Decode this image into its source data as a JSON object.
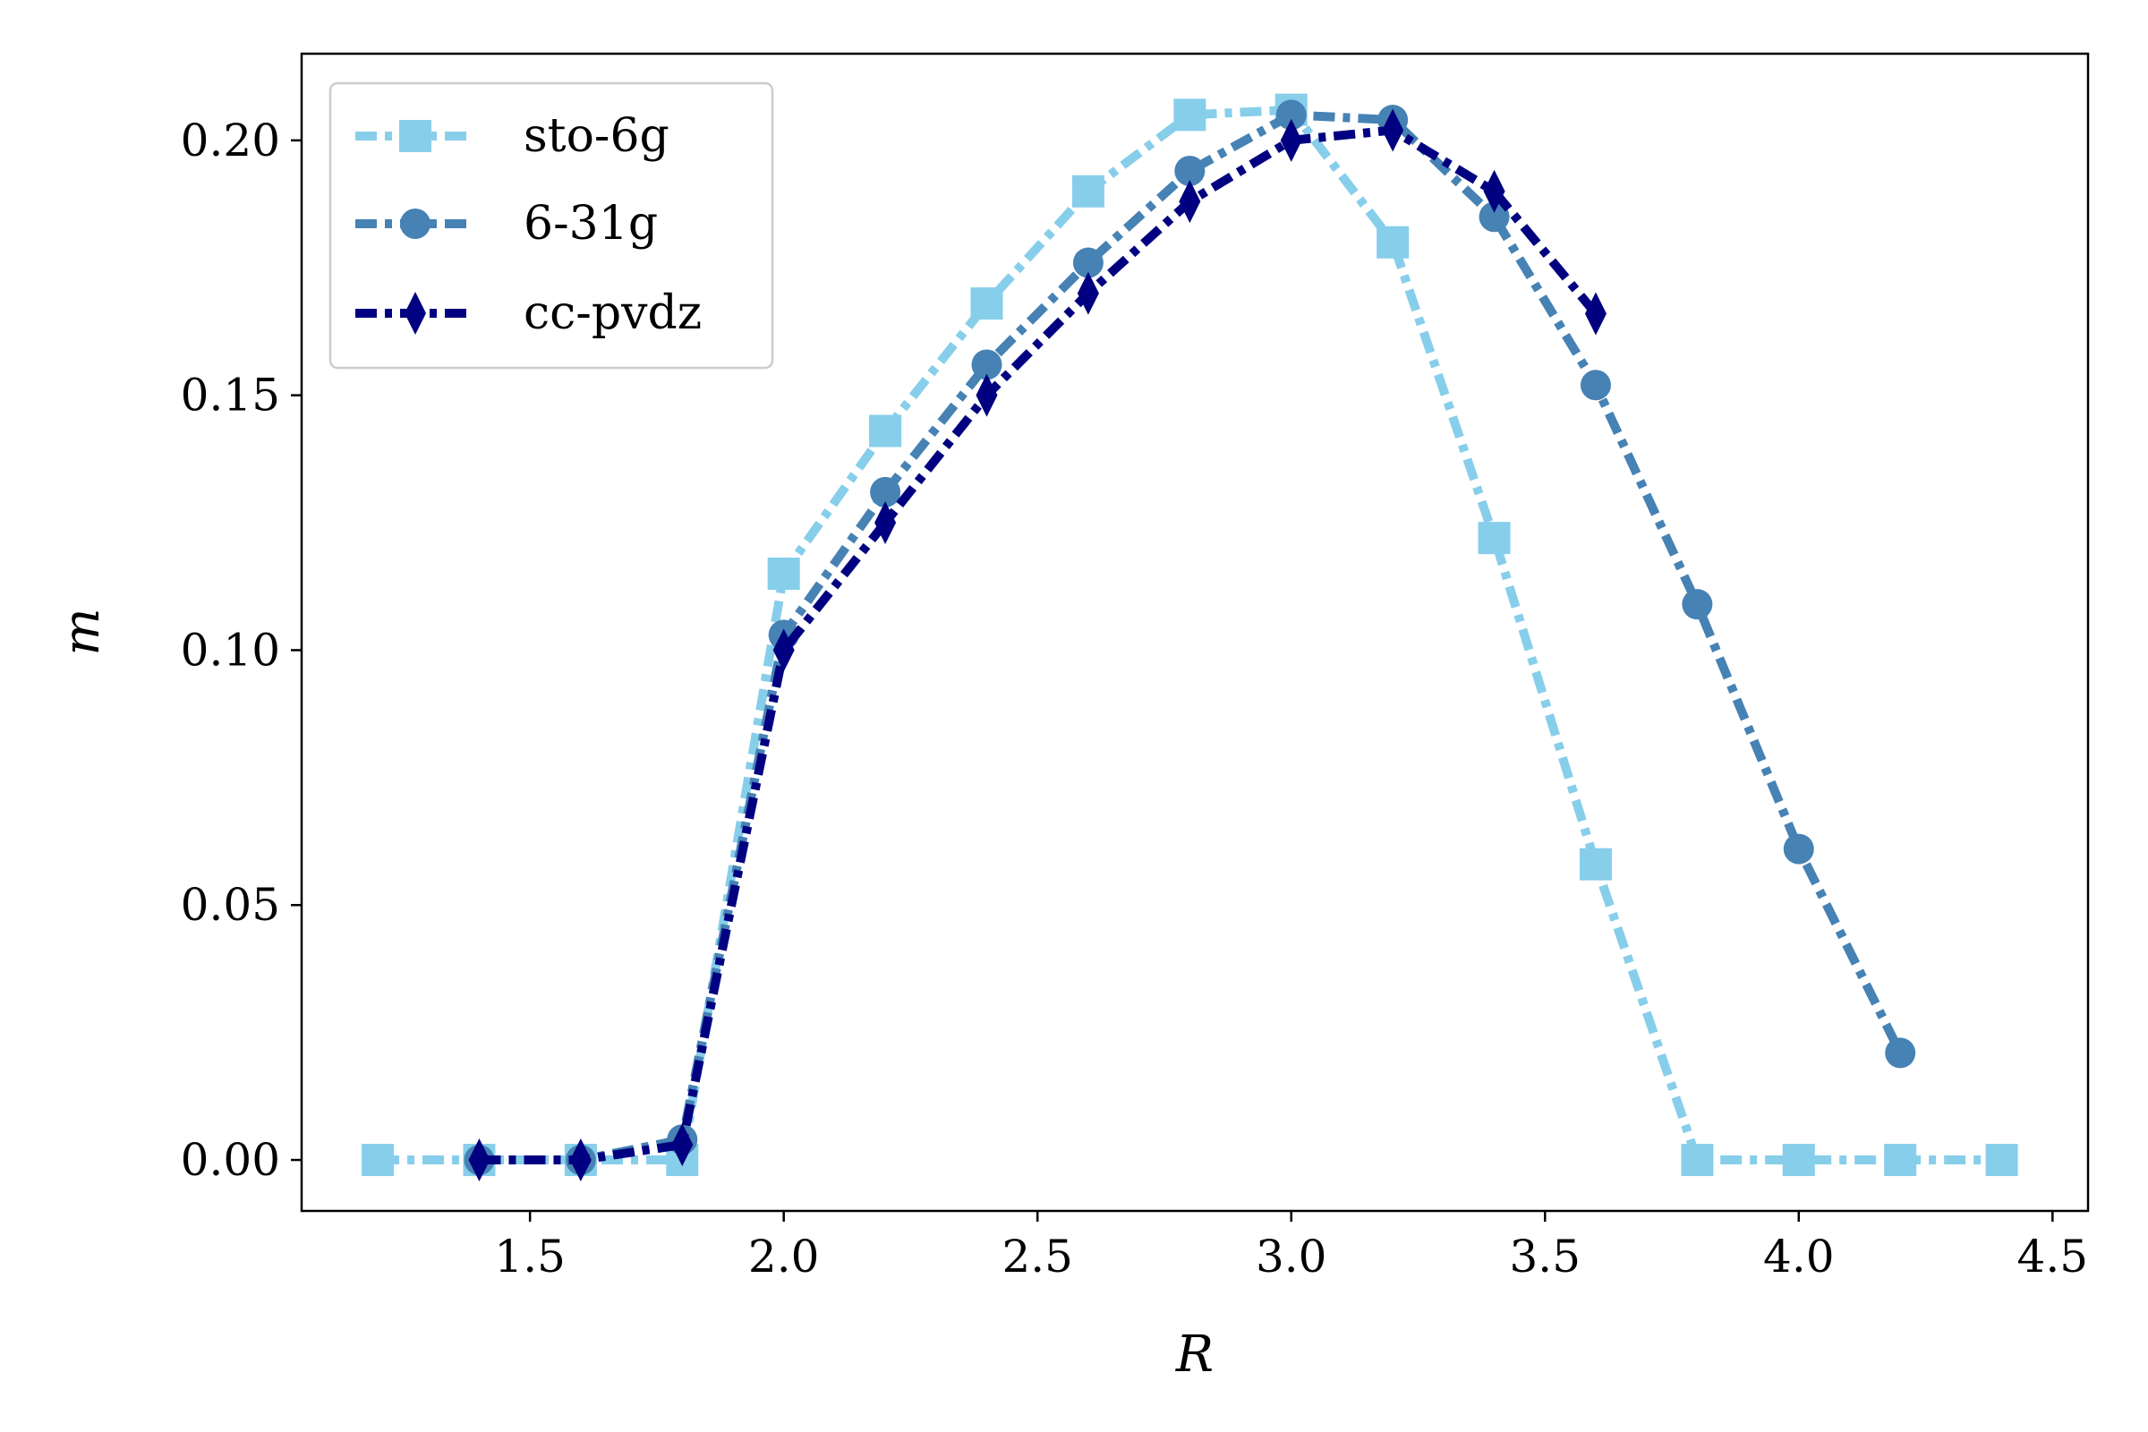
{
  "chart_data": {
    "type": "line",
    "title": "",
    "xlabel": "R",
    "ylabel": "m",
    "xlim": [
      1.05,
      4.57
    ],
    "ylim": [
      -0.01,
      0.217
    ],
    "xticks": [
      "1.5",
      "2.0",
      "2.5",
      "3.0",
      "3.5",
      "4.0",
      "4.5"
    ],
    "yticks": [
      "0.00",
      "0.05",
      "0.10",
      "0.15",
      "0.20"
    ],
    "grid": false,
    "legend_position": "top-left",
    "series": [
      {
        "name": "sto-6g",
        "marker": "square",
        "color": "#87CEEB",
        "x": [
          1.2,
          1.4,
          1.6,
          1.8,
          2.0,
          2.2,
          2.4,
          2.6,
          2.8,
          3.0,
          3.2,
          3.4,
          3.6,
          3.8,
          4.0,
          4.2,
          4.4
        ],
        "y": [
          0.0,
          0.0,
          0.0,
          0.0,
          0.115,
          0.143,
          0.168,
          0.19,
          0.205,
          0.206,
          0.18,
          0.122,
          0.058,
          0.0,
          0.0,
          0.0,
          0.0
        ]
      },
      {
        "name": "6-31g",
        "marker": "circle",
        "color": "#4682B4",
        "x": [
          1.4,
          1.6,
          1.8,
          2.0,
          2.2,
          2.4,
          2.6,
          2.8,
          3.0,
          3.2,
          3.4,
          3.6,
          3.8,
          4.0,
          4.2
        ],
        "y": [
          0.0,
          0.0,
          0.004,
          0.103,
          0.131,
          0.156,
          0.176,
          0.194,
          0.205,
          0.204,
          0.185,
          0.152,
          0.109,
          0.061,
          0.021
        ]
      },
      {
        "name": "cc-pvdz",
        "marker": "thin_diamond",
        "color": "#000080",
        "x": [
          1.4,
          1.6,
          1.8,
          2.0,
          2.2,
          2.4,
          2.6,
          2.8,
          3.0,
          3.2,
          3.4,
          3.6
        ],
        "y": [
          0.0,
          0.0,
          0.003,
          0.1,
          0.125,
          0.15,
          0.17,
          0.188,
          0.2,
          0.202,
          0.19,
          0.166
        ]
      }
    ]
  }
}
